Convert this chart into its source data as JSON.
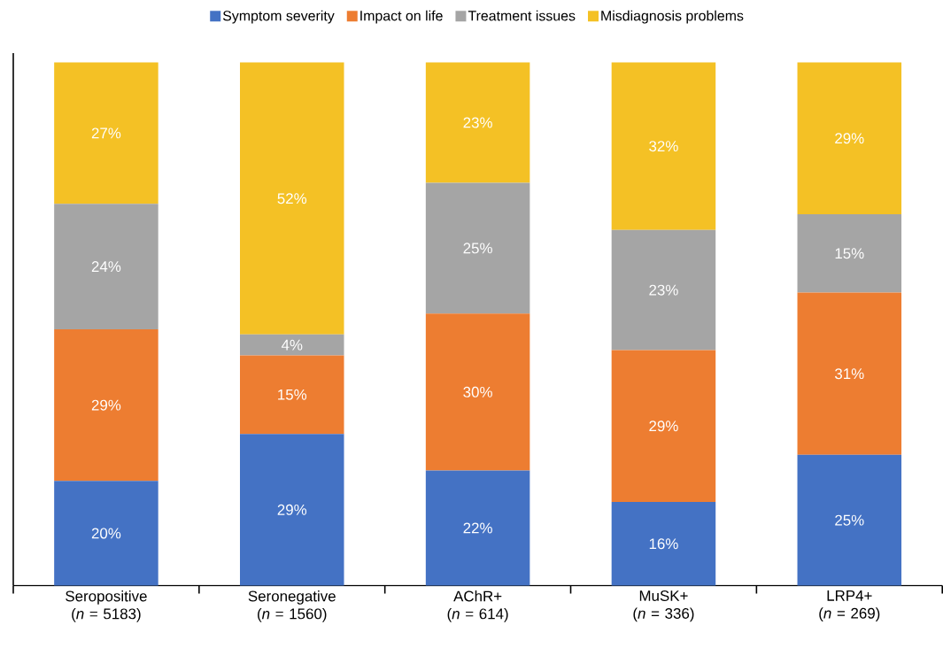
{
  "chart_data": {
    "type": "bar",
    "stacked": true,
    "legend": "top",
    "categories": [
      "Seropositive (*n* = 5183)",
      "Seronegative (*n* = 1560)",
      "AChR+ (*n* = 614)",
      "MuSK+ (*n* = 336)",
      "LRP4+ (*n* = 269)"
    ],
    "series": [
      {
        "name": "Symptom severity",
        "color": "#4472c4",
        "values": [
          20,
          29,
          22,
          16,
          25
        ],
        "value_labels": [
          "20%",
          "29%",
          "22%",
          "16%",
          "25%"
        ]
      },
      {
        "name": "Impact on life",
        "color": "#ed7d31",
        "values": [
          29,
          15,
          30,
          29,
          31
        ],
        "value_labels": [
          "29%",
          "15%",
          "30%",
          "29%",
          "31%"
        ]
      },
      {
        "name": "Treatment issues",
        "color": "#a5a5a5",
        "values": [
          24,
          4,
          25,
          23,
          15
        ],
        "value_labels": [
          "24%",
          "4%",
          "25%",
          "23%",
          "15%"
        ]
      },
      {
        "name": "Misdiagnosis problems",
        "color": "#f4c125",
        "values": [
          27,
          52,
          23,
          32,
          29
        ],
        "value_labels": [
          "27%",
          "52%",
          "23%",
          "32%",
          "29%"
        ]
      }
    ]
  }
}
